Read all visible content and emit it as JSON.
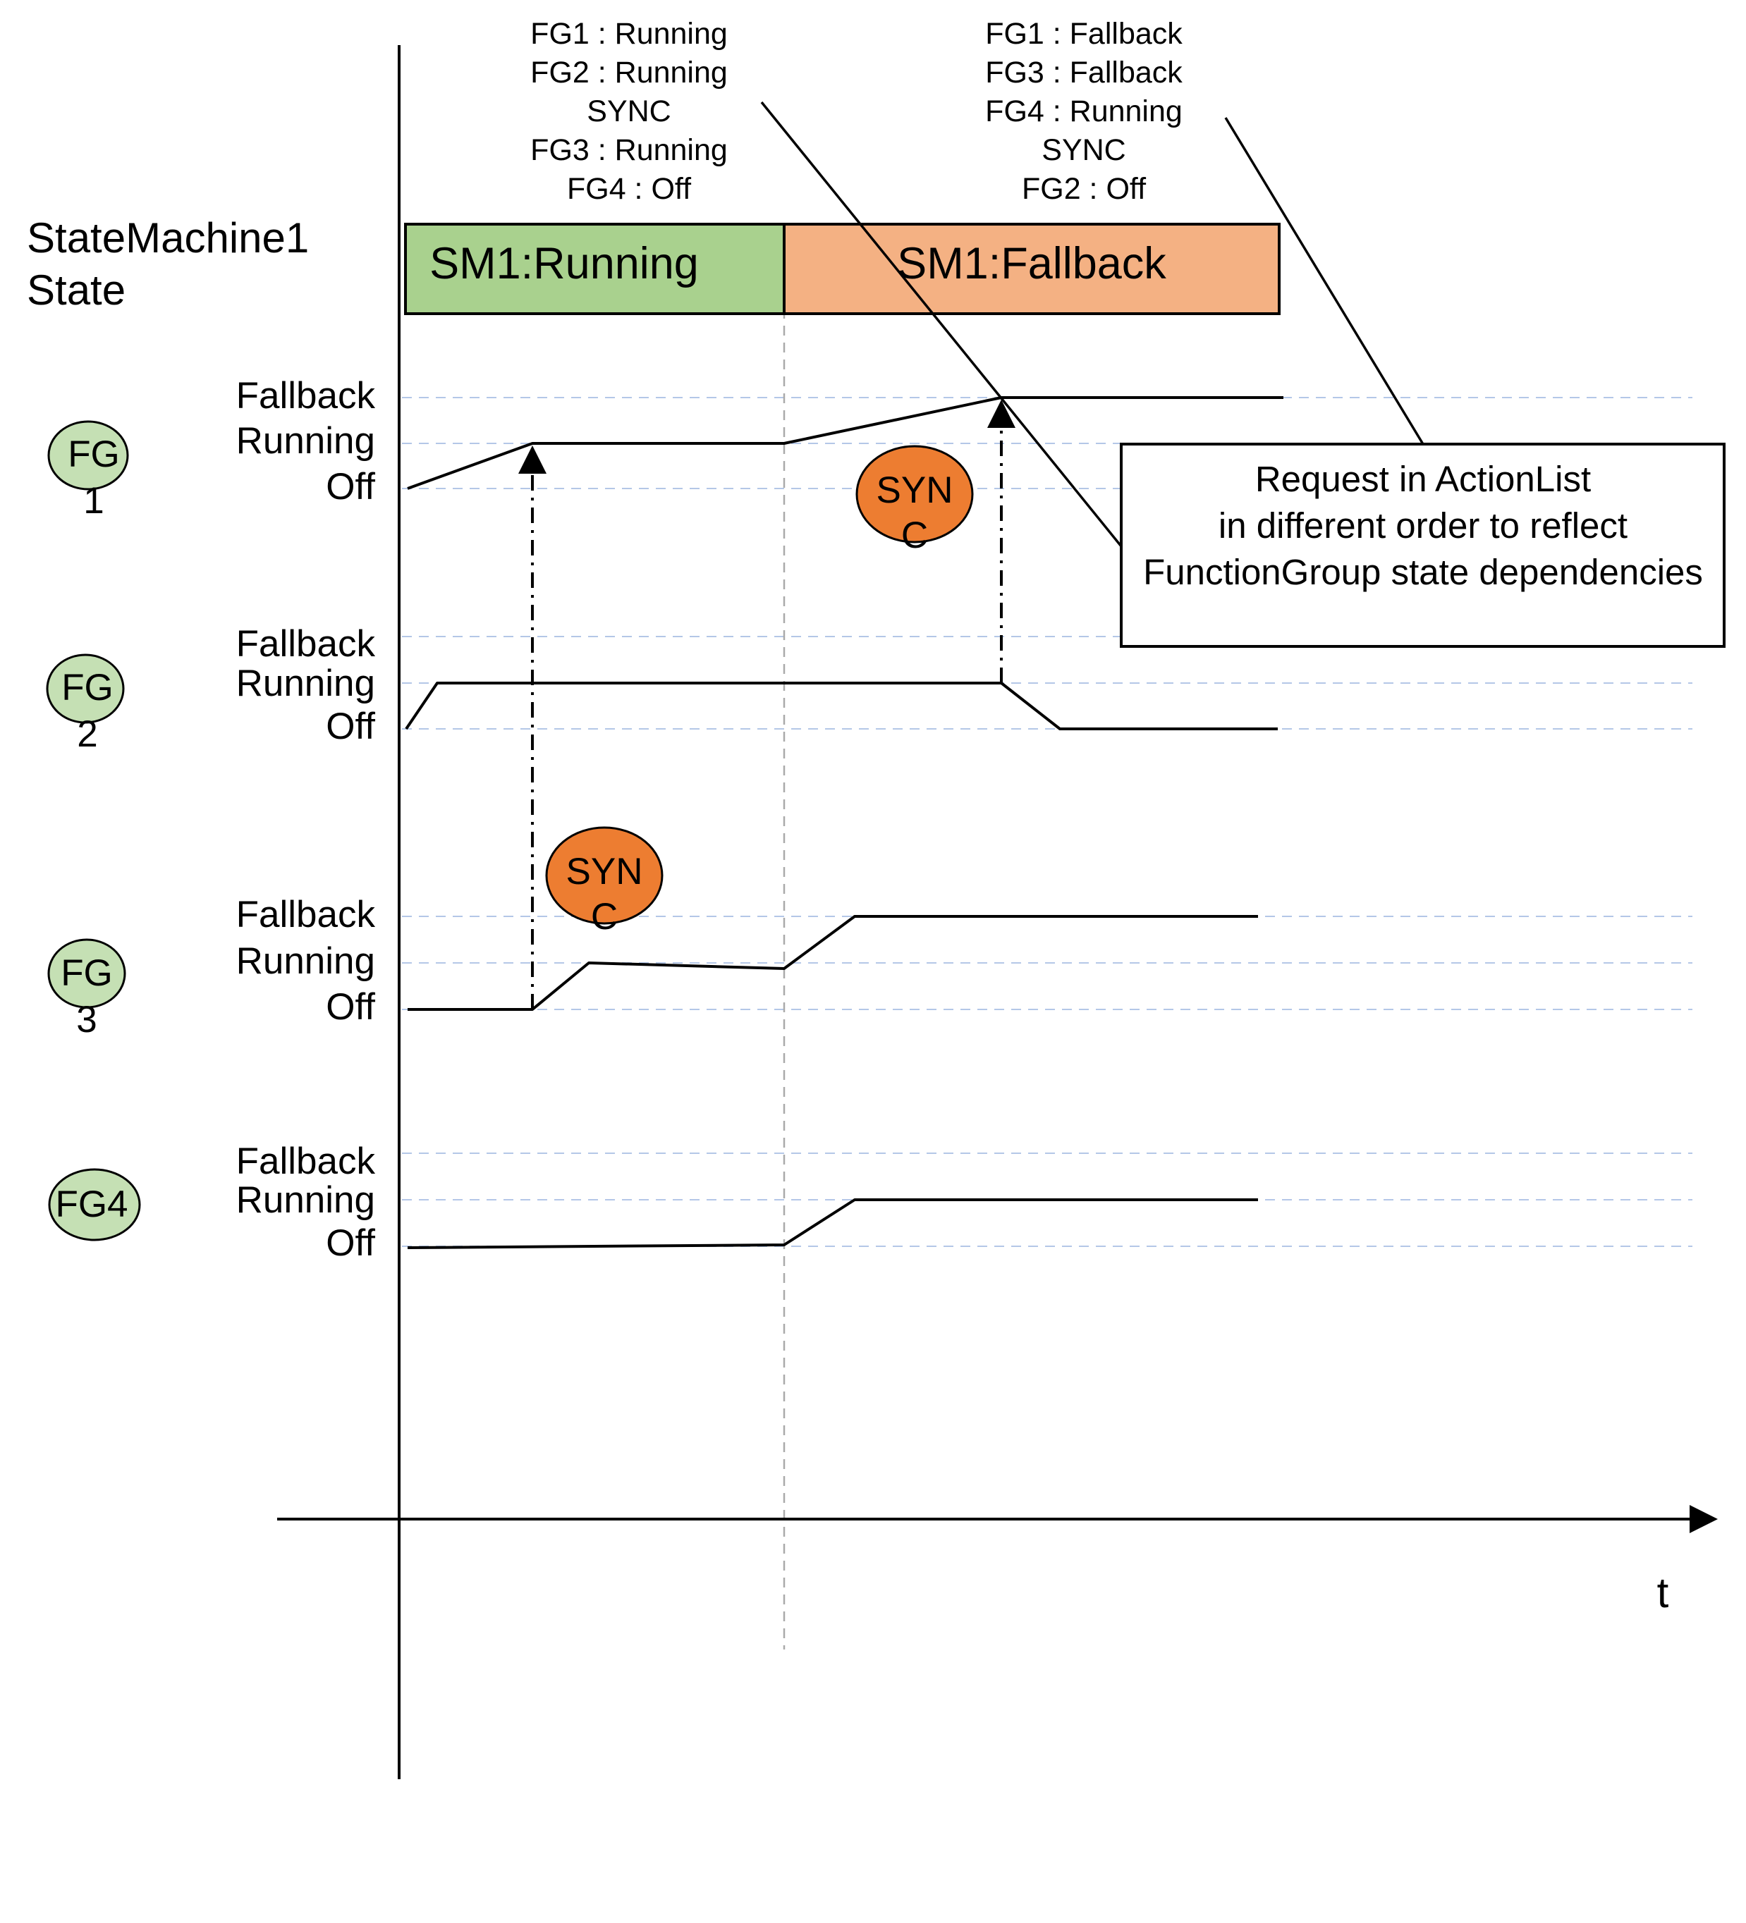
{
  "annotations": {
    "first": [
      "FG1 : Running",
      "FG2 : Running",
      "SYNC",
      "FG3 : Running",
      "FG4 : Off"
    ],
    "second": [
      "FG1 : Fallback",
      "FG3 : Fallback",
      "FG4 : Running",
      "SYNC",
      "FG2 : Off"
    ]
  },
  "state_title": [
    "StateMachine1",
    "State"
  ],
  "sm_states": {
    "running": {
      "label": "SM1:Running",
      "color": "#a9d18e"
    },
    "fallback": {
      "label": "SM1:Fallback",
      "color": "#f4b183"
    }
  },
  "levels": {
    "fallback": "Fallback",
    "running": "Running",
    "off": "Off"
  },
  "function_groups": [
    {
      "name": "FG1",
      "line1": "FG",
      "line2": "1"
    },
    {
      "name": "FG2",
      "line1": "FG",
      "line2": "2"
    },
    {
      "name": "FG3",
      "line1": "FG",
      "line2": "3"
    },
    {
      "name": "FG4",
      "line1": "FG4",
      "line2": ""
    }
  ],
  "sync_markers": [
    {
      "line1": "SYN",
      "line2": "C"
    },
    {
      "line1": "SYN",
      "line2": "C"
    }
  ],
  "callout": [
    "Request in ActionList",
    "in different order to reflect",
    "FunctionGroup state dependencies"
  ],
  "axis": {
    "time_label": "t"
  },
  "colors": {
    "fg_fill": "#c5e0b4",
    "sync_fill": "#ed7d31",
    "gridline": "#b4c7e7"
  }
}
